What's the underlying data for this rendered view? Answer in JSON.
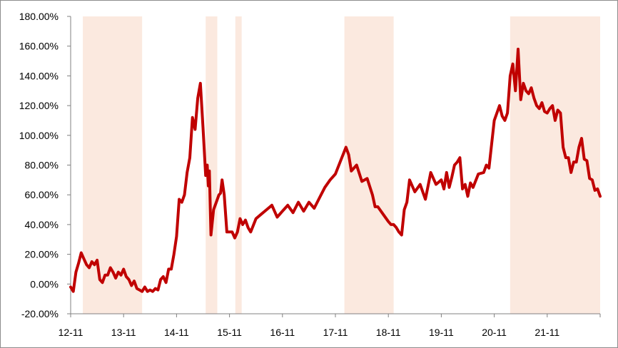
{
  "chart_data": {
    "type": "line",
    "title": "",
    "xlabel": "",
    "ylabel": "",
    "ylim": [
      -20,
      180
    ],
    "xlim": [
      0,
      10
    ],
    "y_ticks": [
      -20,
      0,
      20,
      40,
      60,
      80,
      100,
      120,
      140,
      160,
      180
    ],
    "y_tick_labels": [
      "-20.00%",
      "0.00%",
      "20.00%",
      "40.00%",
      "60.00%",
      "80.00%",
      "100.00%",
      "120.00%",
      "140.00%",
      "160.00%",
      "180.00%"
    ],
    "x_ticks": [
      0,
      1,
      2,
      3,
      4,
      5,
      6,
      7,
      8,
      9,
      10
    ],
    "x_tick_labels": [
      "12-11",
      "13-11",
      "14-11",
      "15-11",
      "16-11",
      "17-11",
      "18-11",
      "19-11",
      "20-11",
      "21-11",
      ""
    ],
    "grid": false,
    "legend": "none",
    "line_color": "#c00000",
    "shade_color": "#fbe9df",
    "shaded_periods": [
      [
        0.23,
        1.35
      ],
      [
        2.55,
        2.77
      ],
      [
        3.11,
        3.23
      ],
      [
        5.17,
        6.1
      ],
      [
        8.3,
        10.0
      ]
    ],
    "series": [
      {
        "x": [
          0,
          0.05,
          0.1,
          0.15,
          0.2,
          0.25,
          0.3,
          0.35,
          0.4,
          0.45,
          0.5,
          0.55,
          0.6,
          0.65,
          0.7,
          0.75,
          0.8,
          0.85,
          0.9,
          0.95,
          1.0,
          1.05,
          1.1,
          1.15,
          1.2,
          1.25,
          1.3,
          1.35,
          1.4,
          1.45,
          1.5,
          1.55,
          1.6,
          1.65,
          1.7,
          1.75,
          1.8,
          1.85,
          1.9,
          1.95,
          2.0,
          2.05,
          2.1,
          2.15,
          2.2,
          2.25,
          2.3,
          2.35,
          2.4,
          2.45,
          2.5,
          2.55,
          2.58,
          2.6,
          2.62,
          2.65,
          2.7,
          2.75,
          2.8,
          2.83,
          2.86,
          2.9,
          2.95,
          3.0,
          3.05,
          3.1,
          3.15,
          3.2,
          3.25,
          3.3,
          3.35,
          3.4,
          3.5,
          3.6,
          3.7,
          3.8,
          3.9,
          4.0,
          4.05,
          4.1,
          4.2,
          4.3,
          4.4,
          4.5,
          4.6,
          4.7,
          4.8,
          4.9,
          5.0,
          5.1,
          5.2,
          5.25,
          5.3,
          5.4,
          5.5,
          5.6,
          5.7,
          5.75,
          5.8,
          5.9,
          6.0,
          6.05,
          6.1,
          6.15,
          6.2,
          6.25,
          6.3,
          6.35,
          6.4,
          6.5,
          6.6,
          6.7,
          6.8,
          6.9,
          7.0,
          7.05,
          7.1,
          7.15,
          7.2,
          7.25,
          7.3,
          7.35,
          7.4,
          7.45,
          7.5,
          7.55,
          7.6,
          7.7,
          7.8,
          7.85,
          7.9,
          8.0,
          8.05,
          8.1,
          8.15,
          8.2,
          8.25,
          8.3,
          8.35,
          8.4,
          8.45,
          8.5,
          8.55,
          8.6,
          8.65,
          8.7,
          8.75,
          8.8,
          8.85,
          8.9,
          8.95,
          9.0,
          9.05,
          9.1,
          9.15,
          9.2,
          9.25,
          9.3,
          9.35,
          9.4,
          9.45,
          9.5,
          9.55,
          9.6,
          9.65,
          9.7,
          9.75,
          9.8,
          9.85,
          9.9,
          9.95,
          10.0
        ],
        "values": [
          -2,
          -5,
          8,
          14,
          21,
          17,
          13,
          11,
          15,
          13,
          16,
          3,
          1,
          6,
          6,
          11,
          8,
          4,
          8,
          6,
          10,
          5,
          3,
          -1,
          2,
          -3,
          -4,
          -5,
          -2,
          -5,
          -4,
          -5,
          -3,
          -4,
          3,
          5,
          1,
          10,
          10,
          20,
          32,
          57,
          55,
          60,
          75,
          85,
          112,
          104,
          125,
          135,
          105,
          73,
          80,
          66,
          76,
          33,
          50,
          55,
          60,
          61,
          70,
          60,
          35,
          35,
          35,
          31,
          35,
          44,
          40,
          43,
          38,
          35,
          44,
          47,
          50,
          53,
          45,
          49,
          51,
          53,
          48,
          55,
          49,
          55,
          51,
          58,
          65,
          70,
          74,
          83,
          92,
          87,
          76,
          80,
          69,
          71,
          60,
          52,
          52,
          47,
          42,
          40,
          40,
          38,
          35,
          33,
          50,
          55,
          70,
          62,
          67,
          57,
          75,
          67,
          70,
          64,
          75,
          65,
          72,
          80,
          82,
          85,
          64,
          67,
          59,
          68,
          65,
          74,
          75,
          80,
          78,
          110,
          115,
          120,
          113,
          110,
          115,
          140,
          148,
          130,
          158,
          124,
          135,
          130,
          128,
          132,
          125,
          120,
          118,
          122,
          116,
          115,
          118,
          120,
          110,
          117,
          115,
          92,
          85,
          85,
          75,
          82,
          82,
          92,
          98,
          84,
          83,
          71,
          70,
          63,
          64,
          59
        ]
      }
    ]
  }
}
